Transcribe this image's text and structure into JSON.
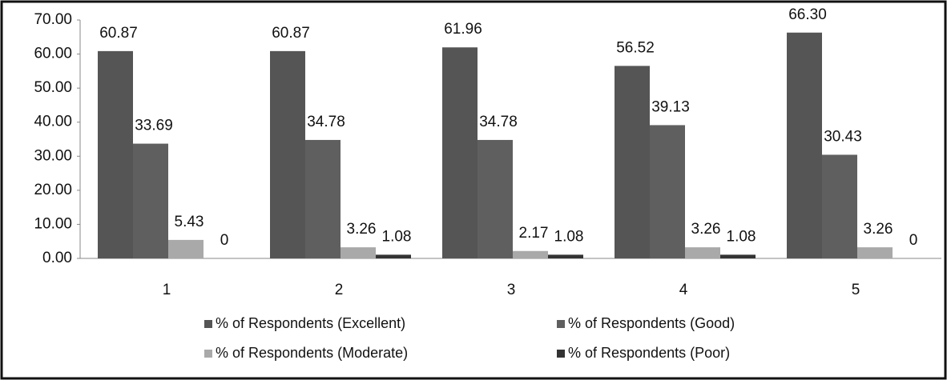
{
  "chart_data": {
    "type": "bar",
    "categories": [
      "1",
      "2",
      "3",
      "4",
      "5"
    ],
    "series": [
      {
        "name": "% of Respondents (Excellent)",
        "color": "#555555",
        "values": [
          60.87,
          60.87,
          61.96,
          56.52,
          66.3
        ],
        "value_labels": [
          "60.87",
          "60.87",
          "61.96",
          "56.52",
          "66.30"
        ]
      },
      {
        "name": "% of Respondents (Good)",
        "color": "#5f5f5f",
        "values": [
          33.69,
          34.78,
          34.78,
          39.13,
          30.43
        ],
        "value_labels": [
          "33.69",
          "34.78",
          "34.78",
          "39.13",
          "30.43"
        ]
      },
      {
        "name": "% of Respondents (Moderate)",
        "color": "#a9a9a9",
        "values": [
          5.43,
          3.26,
          2.17,
          3.26,
          3.26
        ],
        "value_labels": [
          "5.43",
          "3.26",
          "2.17",
          "3.26",
          "3.26"
        ]
      },
      {
        "name": "% of Respondents (Poor)",
        "color": "#333333",
        "values": [
          0,
          1.08,
          1.08,
          1.08,
          0
        ],
        "value_labels": [
          "0",
          "1.08",
          "1.08",
          "1.08",
          "0"
        ]
      }
    ],
    "ylim": [
      0,
      70
    ],
    "yticks": [
      {
        "value": 0,
        "label": "0.00"
      },
      {
        "value": 10,
        "label": "10.00"
      },
      {
        "value": 20,
        "label": "20.00"
      },
      {
        "value": 30,
        "label": "30.00"
      },
      {
        "value": 40,
        "label": "40.00"
      },
      {
        "value": 50,
        "label": "50.00"
      },
      {
        "value": 60,
        "label": "60.00"
      },
      {
        "value": 70,
        "label": "70.00"
      }
    ],
    "grid": false
  }
}
